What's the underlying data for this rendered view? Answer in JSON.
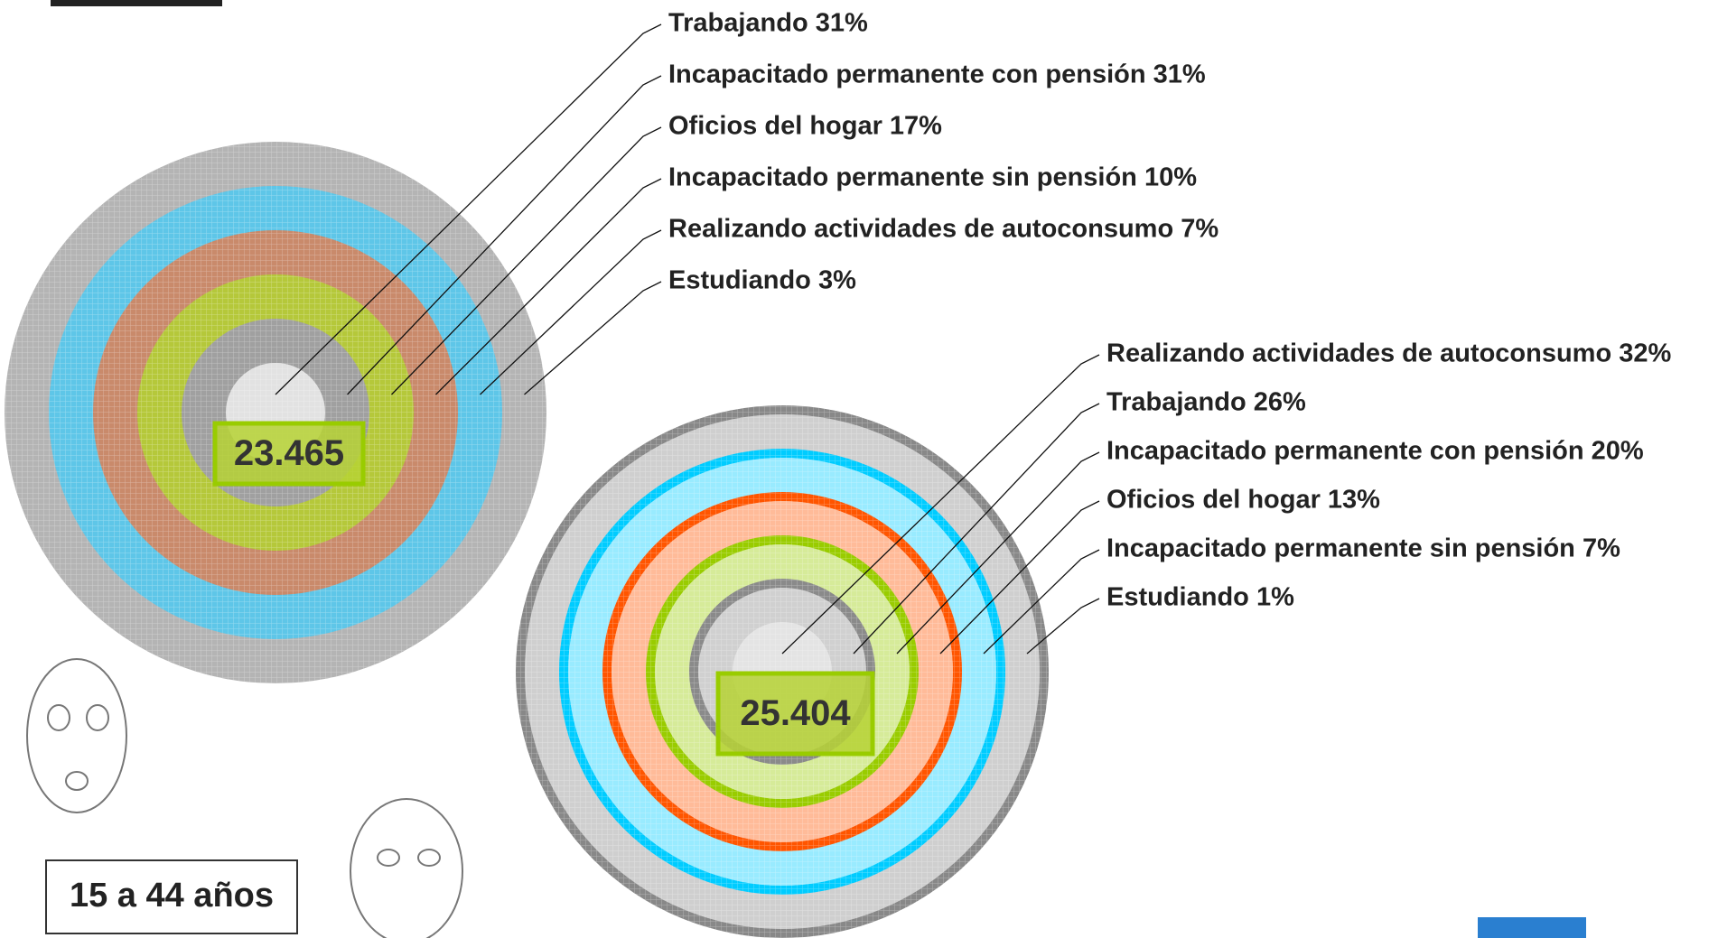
{
  "chart_data": [
    {
      "type": "rings",
      "total": "23.465",
      "labels": [
        "Trabajando 31%",
        "Incapacitado permanente con pensión 31%",
        "Oficios del hogar 17%",
        "Incapacitado permanente sin pensión 10%",
        "Realizando actividades de autoconsumo 7%",
        "Estudiando 3%"
      ],
      "values": [
        31,
        31,
        17,
        10,
        7,
        3
      ],
      "colors": [
        "#e2e2e2",
        "#a0a0a0",
        "#b5c83a",
        "#c98a6b",
        "#5ec6e8",
        "#b4b4b4"
      ]
    },
    {
      "type": "rings",
      "total": "25.404",
      "labels": [
        "Realizando actividades de autoconsumo 32%",
        "Trabajando 26%",
        "Incapacitado permanente con pensión 20%",
        "Oficios del hogar 13%",
        "Incapacitado permanente sin pensión 7%",
        "Estudiando 1%"
      ],
      "values": [
        32,
        26,
        20,
        13,
        7,
        1
      ],
      "colors": [
        "#e4e4e4",
        "#8a8a8a",
        "#99cc00",
        "#ff5500",
        "#00ccff",
        "#888888"
      ]
    }
  ],
  "age_group": "15 a 44 años"
}
